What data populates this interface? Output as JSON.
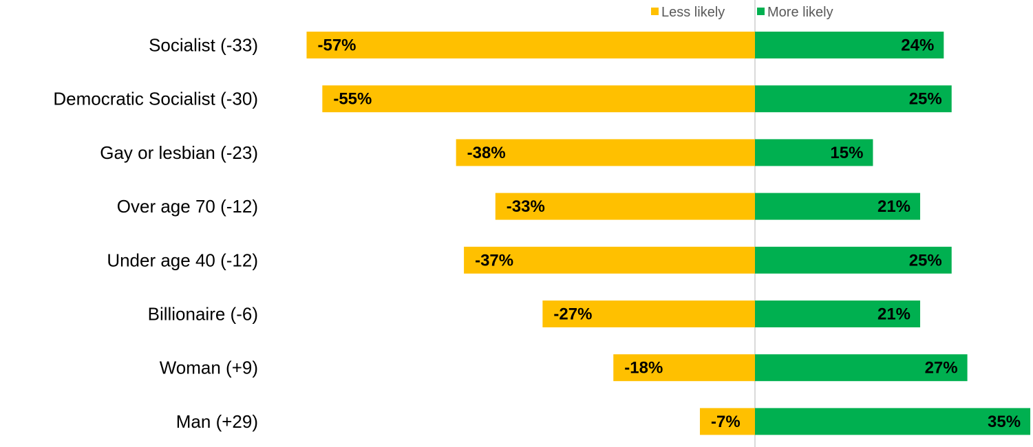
{
  "chart_data": {
    "type": "bar",
    "orientation": "horizontal-diverging",
    "categories": [
      "Socialist (-33)",
      "Democratic Socialist (-30)",
      "Gay or lesbian (-23)",
      "Over age 70 (-12)",
      "Under age 40 (-12)",
      "Billionaire (-6)",
      "Woman (+9)",
      "Man (+29)"
    ],
    "series": [
      {
        "name": "Less likely",
        "color": "#FFC000",
        "values": [
          -57,
          -55,
          -38,
          -33,
          -37,
          -27,
          -18,
          -7
        ],
        "labels": [
          "-57%",
          "-55%",
          "-38%",
          "-33%",
          "-37%",
          "-27%",
          "-18%",
          "-7%"
        ]
      },
      {
        "name": "More likely",
        "color": "#00B050",
        "values": [
          24,
          25,
          15,
          21,
          25,
          21,
          27,
          35
        ],
        "labels": [
          "24%",
          "25%",
          "15%",
          "21%",
          "25%",
          "21%",
          "27%",
          "35%"
        ]
      }
    ],
    "xlim": [
      -57,
      35
    ],
    "legend_position": "top",
    "grid": false
  }
}
